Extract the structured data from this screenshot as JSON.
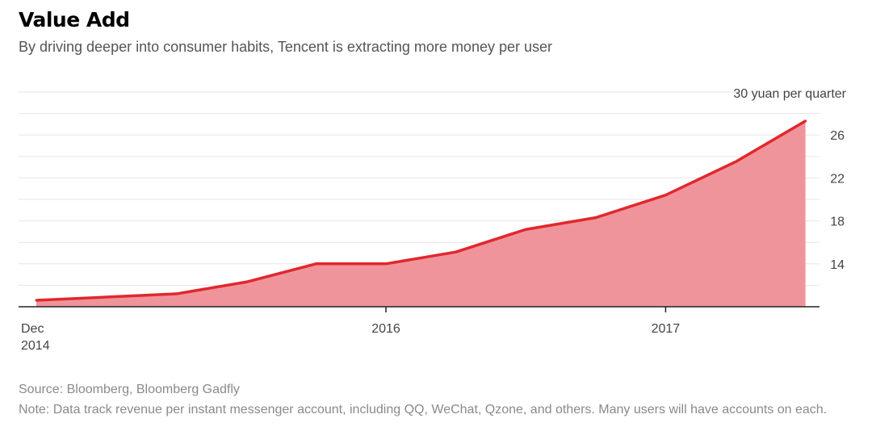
{
  "title": "Value Add",
  "subtitle": "By driving deeper into consumer habits, Tencent is extracting more money per user",
  "source": "Source: Bloomberg, Bloomberg Gadfly",
  "note": "Note: Data track revenue per instant messenger account, including QQ, WeChat, Qzone, and others. Many users will have accounts on each.",
  "colors": {
    "line": "#e0282e",
    "area": "#f0949b",
    "grid": "#e6e6e6",
    "axis": "#222222"
  },
  "chart_data": {
    "type": "area",
    "ylabel": "30 yuan per quarter",
    "y_axis_position": "right",
    "ylim": [
      10,
      30
    ],
    "yticks": [
      14,
      18,
      22,
      26
    ],
    "grid": true,
    "x_tick_labels": [
      {
        "line1": "Dec",
        "line2": "2014",
        "period": "Q4 2014"
      },
      {
        "line1": "2016",
        "line2": "",
        "period": "Q1 2016"
      },
      {
        "line1": "2017",
        "line2": "",
        "period": "Q1 2017"
      }
    ],
    "x": [
      "Q4 2014",
      "Q1 2015",
      "Q2 2015",
      "Q3 2015",
      "Q4 2015",
      "Q1 2016",
      "Q2 2016",
      "Q3 2016",
      "Q4 2016",
      "Q1 2017",
      "Q2 2017",
      "Q3 2017"
    ],
    "series": [
      {
        "values": [
          10.6,
          10.9,
          11.2,
          12.3,
          14.0,
          14.0,
          15.1,
          17.2,
          18.3,
          20.4,
          23.5,
          27.3
        ]
      }
    ]
  }
}
